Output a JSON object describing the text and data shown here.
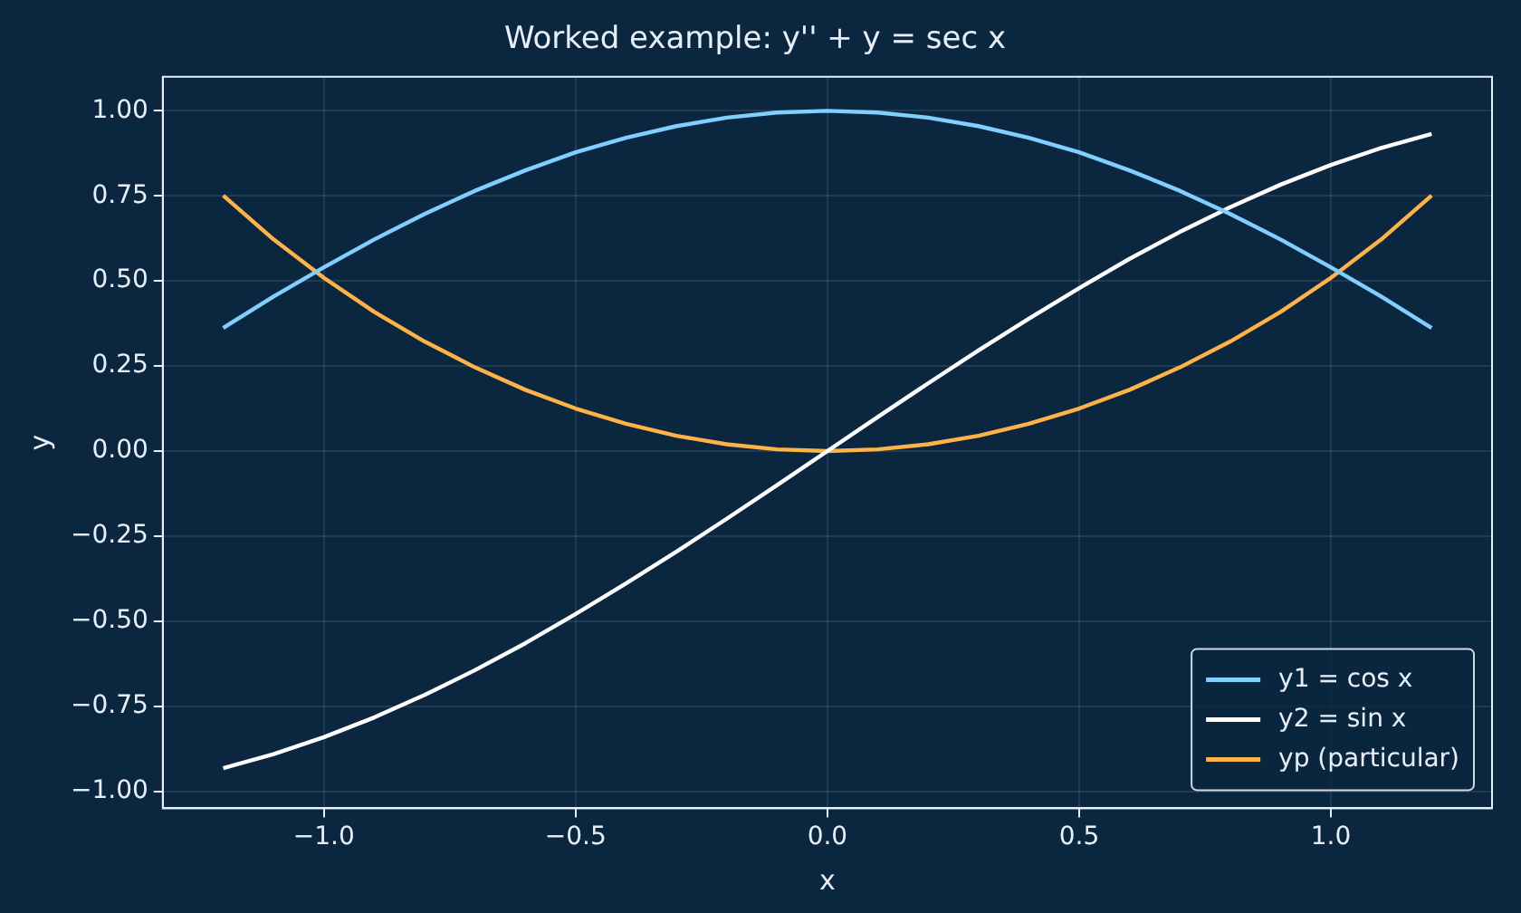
{
  "chart_data": {
    "type": "line",
    "title": "Worked example: y'' + y = sec x",
    "xlabel": "x",
    "ylabel": "y",
    "x": [
      -1.2,
      -1.1,
      -1.0,
      -0.9,
      -0.8,
      -0.7,
      -0.6,
      -0.5,
      -0.4,
      -0.3,
      -0.2,
      -0.1,
      0,
      0.1,
      0.2,
      0.3,
      0.4,
      0.5,
      0.6,
      0.7,
      0.8,
      0.9,
      1.0,
      1.1,
      1.2
    ],
    "series": [
      {
        "name": "y1 = cos x",
        "color": "#7fd0ff",
        "values": [
          0.362,
          0.454,
          0.54,
          0.622,
          0.697,
          0.765,
          0.825,
          0.878,
          0.921,
          0.955,
          0.98,
          0.995,
          1.0,
          0.995,
          0.98,
          0.955,
          0.921,
          0.878,
          0.825,
          0.765,
          0.697,
          0.622,
          0.54,
          0.454,
          0.362
        ]
      },
      {
        "name": "y2 = sin x",
        "color": "#ffffff",
        "values": [
          -0.932,
          -0.891,
          -0.841,
          -0.783,
          -0.717,
          -0.644,
          -0.565,
          -0.479,
          -0.389,
          -0.296,
          -0.199,
          -0.1,
          0,
          0.1,
          0.199,
          0.296,
          0.389,
          0.479,
          0.565,
          0.644,
          0.717,
          0.783,
          0.841,
          0.891,
          0.932
        ]
      },
      {
        "name": "yp (particular)",
        "color": "#ffb347",
        "values": [
          0.751,
          0.622,
          0.509,
          0.409,
          0.322,
          0.246,
          0.18,
          0.125,
          0.08,
          0.045,
          0.02,
          0.005,
          0,
          0.005,
          0.02,
          0.045,
          0.08,
          0.125,
          0.18,
          0.246,
          0.322,
          0.409,
          0.509,
          0.622,
          0.751
        ]
      }
    ],
    "xlim": [
      -1.32,
      1.32
    ],
    "xticks": [
      {
        "value": -1.0,
        "label": "−1.0"
      },
      {
        "value": -0.5,
        "label": "−0.5"
      },
      {
        "value": 0.0,
        "label": "0.0"
      },
      {
        "value": 0.5,
        "label": "0.5"
      },
      {
        "value": 1.0,
        "label": "1.0"
      }
    ],
    "ylim": [
      -1.05,
      1.1
    ],
    "yticks": [
      {
        "value": -1.0,
        "label": "−1.00"
      },
      {
        "value": -0.75,
        "label": "−0.75"
      },
      {
        "value": -0.5,
        "label": "−0.50"
      },
      {
        "value": -0.25,
        "label": "−0.25"
      },
      {
        "value": 0,
        "label": "0.00"
      },
      {
        "value": 0.25,
        "label": "0.25"
      },
      {
        "value": 0.5,
        "label": "0.50"
      },
      {
        "value": 0.75,
        "label": "0.75"
      },
      {
        "value": 1.0,
        "label": "1.00"
      }
    ],
    "grid": true,
    "legend": "bottom right",
    "marker": "none",
    "line_style": "solid"
  }
}
